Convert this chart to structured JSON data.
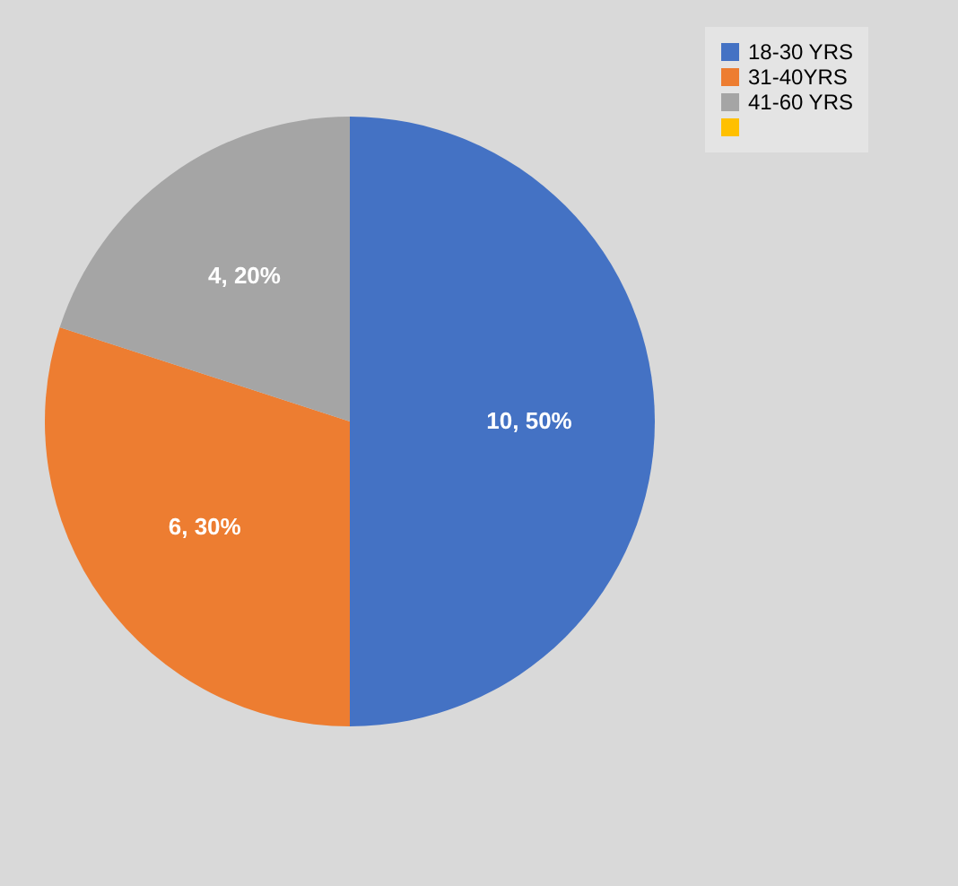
{
  "chart_data": {
    "type": "pie",
    "categories": [
      "18-30 YRS",
      "31-40YRS",
      "41-60 YRS",
      null
    ],
    "values": [
      10,
      6,
      4,
      0
    ],
    "colors": [
      "#4472c4",
      "#ed7d31",
      "#a5a5a5",
      "#ffc000"
    ],
    "value_labels": [
      "10, 50%",
      "6, 30%",
      "4, 20%",
      null
    ],
    "legend": "right"
  }
}
